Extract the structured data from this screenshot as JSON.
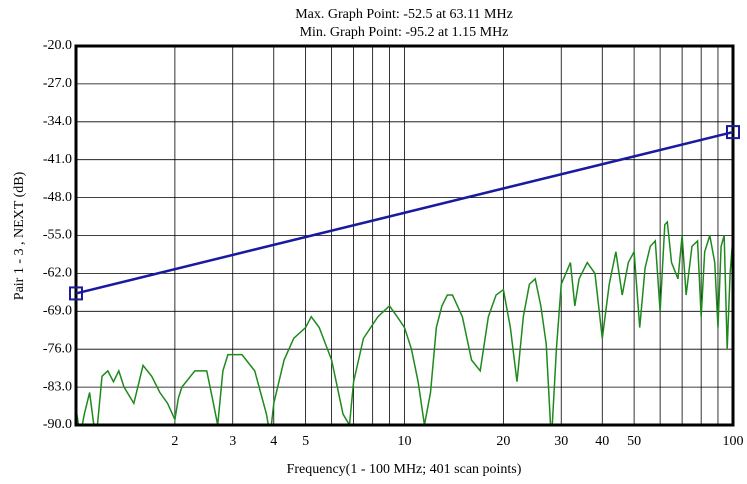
{
  "chart_data": {
    "type": "line",
    "title": "Max. Graph Point: -52.5 at 63.11 MHz",
    "subtitle": "Min. Graph Point: -95.2 at 1.15 MHz",
    "x_label": "Frequency(1 - 100 MHz; 401 scan points)",
    "y_label": "Pair 1 - 3 , NEXT (dB)",
    "x_scale": "log",
    "grid": true,
    "xlim": [
      1,
      100
    ],
    "xticks": [
      2,
      3,
      4,
      5,
      10,
      20,
      30,
      40,
      50,
      100
    ],
    "xminorticks": [
      6,
      7,
      8,
      9,
      60,
      70,
      80,
      90
    ],
    "ylim": [
      -90,
      -20
    ],
    "yticks": [
      {
        "value": -90,
        "label": "-90.0"
      },
      {
        "value": -83,
        "label": "-83.0"
      },
      {
        "value": -76,
        "label": "-76.0"
      },
      {
        "value": -69,
        "label": "-69.0"
      },
      {
        "value": -62,
        "label": "-62.0"
      },
      {
        "value": -55,
        "label": "-55.0"
      },
      {
        "value": -48,
        "label": "-48.0"
      },
      {
        "value": -41,
        "label": "-41.0"
      },
      {
        "value": -34,
        "label": "-34.0"
      },
      {
        "value": -27,
        "label": "-27.0"
      },
      {
        "value": -20,
        "label": "-20.0"
      }
    ],
    "series": [
      {
        "color": "#1a1aa0",
        "markers": true,
        "x": [
          1,
          100
        ],
        "values": [
          -65.7,
          -35.9
        ]
      },
      {
        "color": "#1e8a1e",
        "markers": false,
        "x": [
          1,
          1.03,
          1.06,
          1.1,
          1.15,
          1.2,
          1.25,
          1.3,
          1.35,
          1.4,
          1.5,
          1.6,
          1.7,
          1.8,
          1.9,
          2.0,
          2.05,
          2.1,
          2.3,
          2.5,
          2.6,
          2.7,
          2.8,
          2.9,
          3.2,
          3.5,
          3.8,
          3.9,
          4.0,
          4.3,
          4.6,
          5,
          5.2,
          5.5,
          6,
          6.5,
          6.8,
          7,
          7.5,
          8.3,
          9,
          9.5,
          10,
          10.5,
          11,
          11.5,
          12,
          12.5,
          13,
          13.5,
          14,
          15,
          16,
          17,
          18,
          19,
          20,
          21,
          22,
          23,
          24,
          25,
          26,
          27,
          28,
          29,
          30,
          32,
          33,
          34,
          36,
          38,
          40,
          42,
          44,
          46,
          48,
          50,
          52,
          54,
          56,
          58,
          60,
          62,
          63.11,
          65,
          68,
          70,
          72,
          75,
          78,
          80,
          82,
          85,
          88,
          90,
          92,
          94,
          96,
          98,
          100
        ],
        "values": [
          -87,
          -92,
          -88,
          -84,
          -93,
          -81,
          -80,
          -82,
          -80,
          -83,
          -86,
          -79,
          -81,
          -84,
          -86,
          -89,
          -85,
          -83,
          -80,
          -80,
          -85,
          -90,
          -80,
          -77,
          -77,
          -80,
          -88,
          -92,
          -86,
          -78,
          -74,
          -72,
          -70,
          -72,
          -78,
          -88,
          -90,
          -82,
          -74,
          -70,
          -68,
          -70,
          -72,
          -76,
          -82,
          -90,
          -84,
          -72,
          -68,
          -66,
          -66,
          -70,
          -78,
          -80,
          -70,
          -66,
          -65,
          -72,
          -82,
          -70,
          -64,
          -63,
          -68,
          -75,
          -93,
          -76,
          -64,
          -60,
          -68,
          -63,
          -60,
          -62,
          -74,
          -64,
          -58,
          -66,
          -60,
          -58,
          -72,
          -61,
          -57,
          -56,
          -69,
          -53,
          -52.5,
          -60,
          -63,
          -55,
          -66,
          -57,
          -56,
          -70,
          -58,
          -55,
          -60,
          -72,
          -57,
          -55,
          -76,
          -62,
          -55
        ]
      }
    ]
  }
}
